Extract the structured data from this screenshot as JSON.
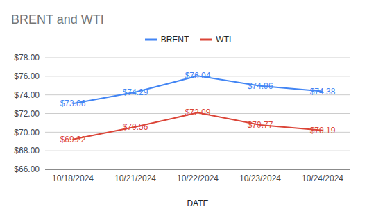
{
  "chart_data": {
    "type": "line",
    "title": "BRENT and WTI",
    "x_label": "DATE",
    "categories": [
      "10/18/2024",
      "10/21/2024",
      "10/22/2024",
      "10/23/2024",
      "10/24/2024"
    ],
    "series": [
      {
        "name": "BRENT",
        "color": "#4285f4",
        "values": [
          73.06,
          74.29,
          76.04,
          74.96,
          74.38
        ],
        "value_labels": [
          "$73.06",
          "$74.29",
          "$76.04",
          "$74.96",
          "$74.38"
        ]
      },
      {
        "name": "WTI",
        "color": "#db4437",
        "values": [
          69.22,
          70.56,
          72.09,
          70.77,
          70.19
        ],
        "value_labels": [
          "$69.22",
          "$70.56",
          "$72.09",
          "$70.77",
          "$70.19"
        ]
      }
    ],
    "ylim": [
      66,
      78
    ],
    "yticks": [
      {
        "value": 66,
        "label": "$66.00"
      },
      {
        "value": 68,
        "label": "$68.00"
      },
      {
        "value": 70,
        "label": "$70.00"
      },
      {
        "value": 72,
        "label": "$72.00"
      },
      {
        "value": 74,
        "label": "$74.00"
      },
      {
        "value": 76,
        "label": "$76.00"
      },
      {
        "value": 78,
        "label": "$78.00"
      }
    ],
    "grid": true,
    "legend": "top",
    "data_labels": true
  }
}
